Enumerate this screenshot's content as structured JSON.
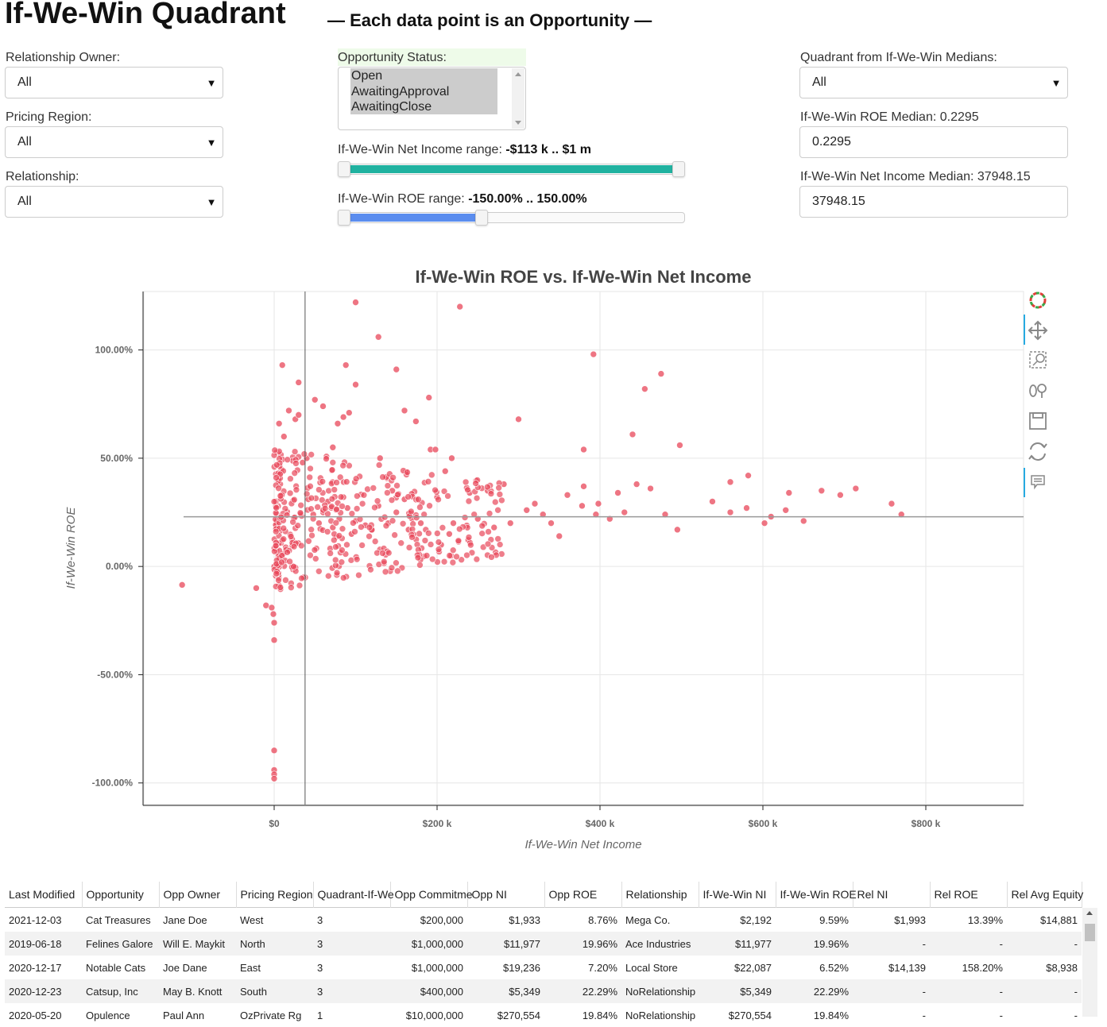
{
  "header": {
    "title": "If-We-Win Quadrant",
    "subtitle": "— Each data point is an Opportunity —"
  },
  "filters": {
    "relationship_owner": {
      "label": "Relationship Owner:",
      "value": "All"
    },
    "pricing_region": {
      "label": "Pricing Region:",
      "value": "All"
    },
    "relationship": {
      "label": "Relationship:",
      "value": "All"
    },
    "opportunity_status": {
      "label": "Opportunity Status:",
      "options": [
        "Open",
        "AwaitingApproval",
        "AwaitingClose"
      ]
    },
    "ni_range": {
      "label": "If-We-Win Net Income range:",
      "value": "-$113 k .. $1 m",
      "low": 0.0,
      "high": 1.0,
      "color": "#20b2a0"
    },
    "roe_range": {
      "label": "If-We-Win ROE range:",
      "value": "-150.00% .. 150.00%",
      "low": 0.0,
      "high": 0.41,
      "color": "#5b8def"
    },
    "quadrant": {
      "label": "Quadrant from If-We-Win Medians:",
      "value": "All"
    },
    "roe_median": {
      "label": "If-We-Win ROE Median: 0.2295",
      "value": "0.2295"
    },
    "ni_median": {
      "label": "If-We-Win Net Income Median: 37948.15",
      "value": "37948.15"
    }
  },
  "chart_data": {
    "type": "scatter",
    "title": "If-We-Win ROE vs. If-We-Win Net Income",
    "xlabel": "If-We-Win Net Income",
    "ylabel": "If-We-Win ROE",
    "x_ticks": [
      "$0",
      "$200 k",
      "$400 k",
      "$600 k",
      "$800 k"
    ],
    "y_ticks": [
      "100.00%",
      "50.00%",
      "0.00%",
      "-50.00%",
      "-100.00%"
    ],
    "xlim": [
      -160000,
      920000
    ],
    "ylim": [
      -1.1,
      1.27
    ],
    "median_x": 37948.15,
    "median_y": 0.2295,
    "grid": true,
    "point_color": "#e8475a",
    "series": [
      {
        "points": [
          [
            -113000,
            -0.085
          ],
          [
            -22000,
            -0.1
          ],
          [
            -10000,
            -0.18
          ],
          [
            -3000,
            -0.19
          ],
          [
            -1000,
            -0.22
          ],
          [
            0,
            -0.26
          ],
          [
            0,
            -0.34
          ],
          [
            0,
            -0.85
          ],
          [
            0,
            -0.94
          ],
          [
            0,
            -0.96
          ],
          [
            0,
            -0.98
          ],
          [
            0,
            0.0
          ],
          [
            2000,
            -0.02
          ],
          [
            4000,
            0.02
          ],
          [
            5000,
            0.4
          ],
          [
            6000,
            0.66
          ],
          [
            10000,
            0.93
          ],
          [
            12000,
            0.6
          ],
          [
            18000,
            0.72
          ],
          [
            26000,
            0.68
          ],
          [
            30000,
            0.85
          ],
          [
            30000,
            0.7
          ],
          [
            35000,
            0.48
          ],
          [
            40000,
            0.5
          ],
          [
            50000,
            0.77
          ],
          [
            60000,
            0.74
          ],
          [
            72000,
            0.55
          ],
          [
            78000,
            0.66
          ],
          [
            85000,
            0.69
          ],
          [
            88000,
            0.93
          ],
          [
            92000,
            0.71
          ],
          [
            100000,
            1.22
          ],
          [
            100000,
            0.84
          ],
          [
            128000,
            1.06
          ],
          [
            150000,
            0.91
          ],
          [
            160000,
            0.72
          ],
          [
            174000,
            0.67
          ],
          [
            190000,
            0.78
          ],
          [
            192000,
            0.54
          ],
          [
            198000,
            0.54
          ],
          [
            210000,
            0.44
          ],
          [
            218000,
            0.5
          ],
          [
            228000,
            1.2
          ],
          [
            300000,
            0.68
          ],
          [
            380000,
            0.54
          ],
          [
            392000,
            0.98
          ],
          [
            440000,
            0.61
          ],
          [
            455000,
            0.82
          ],
          [
            475000,
            0.89
          ],
          [
            498000,
            0.56
          ],
          [
            130000,
            0.5
          ],
          [
            145000,
            0.35
          ],
          [
            160000,
            0.31
          ],
          [
            200000,
            0.32
          ],
          [
            240000,
            0.34
          ],
          [
            262000,
            0.35
          ],
          [
            282000,
            0.38
          ],
          [
            320000,
            0.29
          ],
          [
            360000,
            0.33
          ],
          [
            380000,
            0.37
          ],
          [
            398000,
            0.29
          ],
          [
            422000,
            0.34
          ],
          [
            445000,
            0.38
          ],
          [
            462000,
            0.36
          ],
          [
            538000,
            0.3
          ],
          [
            560000,
            0.39
          ],
          [
            582000,
            0.42
          ],
          [
            610000,
            0.23
          ],
          [
            632000,
            0.34
          ],
          [
            672000,
            0.35
          ],
          [
            695000,
            0.33
          ],
          [
            714000,
            0.36
          ],
          [
            758000,
            0.29
          ],
          [
            770000,
            0.24
          ],
          [
            560000,
            0.25
          ],
          [
            580000,
            0.27
          ],
          [
            602000,
            0.2
          ],
          [
            628000,
            0.26
          ],
          [
            650000,
            0.21
          ],
          [
            378000,
            0.28
          ],
          [
            395000,
            0.24
          ],
          [
            412000,
            0.22
          ],
          [
            430000,
            0.25
          ],
          [
            480000,
            0.24
          ],
          [
            495000,
            0.17
          ],
          [
            350000,
            0.14
          ],
          [
            340000,
            0.2
          ],
          [
            330000,
            0.24
          ],
          [
            310000,
            0.26
          ],
          [
            290000,
            0.2
          ],
          [
            270000,
            0.18
          ],
          [
            250000,
            0.22
          ],
          [
            220000,
            0.2
          ],
          [
            215000,
            0.15
          ],
          [
            205000,
            0.1
          ],
          [
            180000,
            0.2
          ],
          [
            165000,
            0.17
          ],
          [
            150000,
            0.25
          ],
          [
            140000,
            0.2
          ],
          [
            128000,
            0.28
          ],
          [
            120000,
            0.17
          ],
          [
            112000,
            0.19
          ],
          [
            100000,
            0.21
          ],
          [
            95000,
            0.15
          ],
          [
            90000,
            0.27
          ],
          [
            85000,
            0.32
          ],
          [
            80000,
            0.22
          ],
          [
            72000,
            0.18
          ],
          [
            66000,
            0.3
          ],
          [
            60000,
            0.25
          ],
          [
            55000,
            0.2
          ],
          [
            48000,
            0.24
          ],
          [
            42000,
            0.31
          ]
        ]
      }
    ]
  },
  "toolbar": {
    "icons": [
      "bokeh-logo-icon",
      "pan-icon",
      "box-zoom-icon",
      "wheel-zoom-icon",
      "save-icon",
      "reset-icon",
      "hover-icon"
    ]
  },
  "table": {
    "columns": [
      "Last Modified",
      "Opportunity",
      "Opp Owner",
      "Pricing Region",
      "Quadrant-If-We",
      "Opp Commitme",
      "Opp NI",
      "Opp ROE",
      "Relationship",
      "If-We-Win NI",
      "If-We-Win ROE",
      "Rel NI",
      "Rel ROE",
      "Rel Avg Equity"
    ],
    "rows": [
      [
        "2021-12-03",
        "Cat Treasures",
        "Jane Doe",
        "West",
        "3",
        "$200,000",
        "$1,933",
        "8.76%",
        "Mega Co.",
        "$2,192",
        "9.59%",
        "$1,993",
        "13.39%",
        "$14,881"
      ],
      [
        "2019-06-18",
        "Felines Galore",
        "Will E. Maykit",
        "North",
        "3",
        "$1,000,000",
        "$11,977",
        "19.96%",
        "Ace Industries",
        "$11,977",
        "19.96%",
        "-",
        "-",
        "-"
      ],
      [
        "2020-12-17",
        "Notable Cats",
        "Joe Dane",
        "East",
        "3",
        "$1,000,000",
        "$19,236",
        "7.20%",
        "Local Store",
        "$22,087",
        "6.52%",
        "$14,139",
        "158.20%",
        "$8,938"
      ],
      [
        "2020-12-23",
        "Catsup, Inc",
        "May B. Knott",
        "South",
        "3",
        "$400,000",
        "$5,349",
        "22.29%",
        "NoRelationship",
        "$5,349",
        "22.29%",
        "-",
        "-",
        "-"
      ],
      [
        "2020-05-20",
        "Opulence",
        "Paul Ann",
        "OzPrivate Rg",
        "1",
        "$10,000,000",
        "$270,554",
        "19.84%",
        "NoRelationship",
        "$270,554",
        "19.84%",
        "-",
        "-",
        "-"
      ]
    ]
  }
}
